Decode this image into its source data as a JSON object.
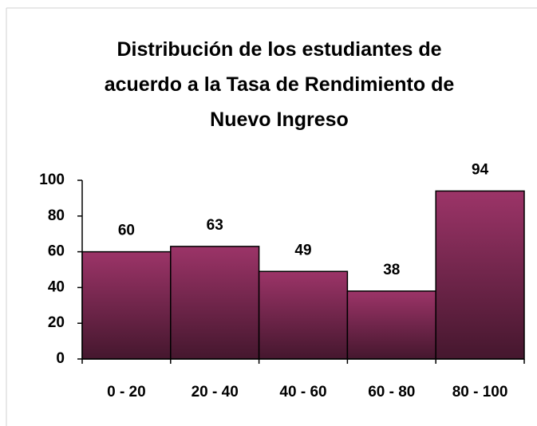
{
  "chart_data": {
    "type": "bar",
    "title": "Distribución de los estudiantes de acuerdo a la Tasa de Rendimiento de Nuevo Ingreso",
    "categories": [
      "0 - 20",
      "20 - 40",
      "40 - 60",
      "60 - 80",
      "80 - 100"
    ],
    "values": [
      60,
      63,
      49,
      38,
      94
    ],
    "color": [
      "#9c3468",
      "#45172e"
    ],
    "ylim": [
      0,
      100
    ],
    "yticks": [
      0,
      20,
      40,
      60,
      80,
      100
    ],
    "grid": false
  }
}
